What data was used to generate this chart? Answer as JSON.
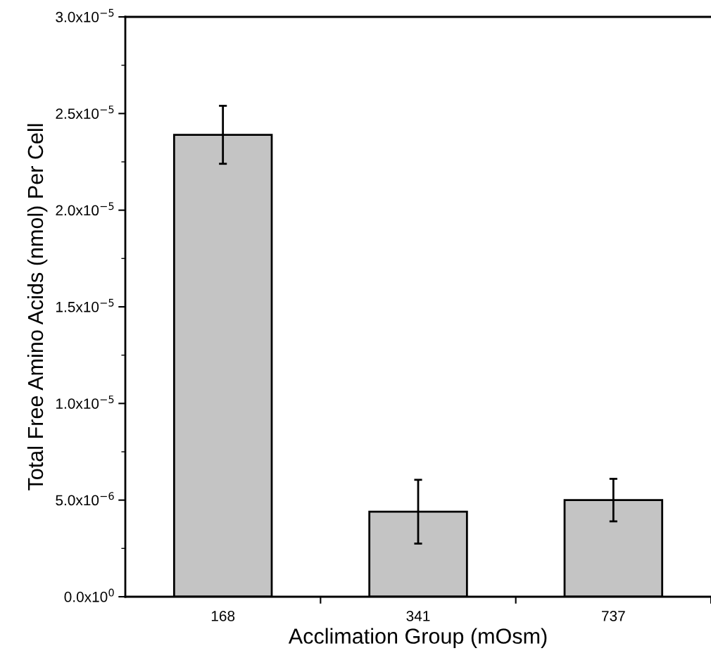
{
  "chart_data": {
    "type": "bar",
    "xlabel": "Acclimation Group (mOsm)",
    "ylabel": "Total Free Amino Acids (nmol) Per Cell",
    "categories": [
      "168",
      "341",
      "737"
    ],
    "values": [
      2.39e-05,
      4.4e-06,
      5e-06
    ],
    "errors": [
      1.5e-06,
      1.65e-06,
      1.1e-06
    ],
    "color": "#c4c4c4",
    "ylim": [
      0,
      3e-05
    ],
    "yticks": [
      {
        "value": 0,
        "label": "0.0x10$^{0}$"
      },
      {
        "value": 5e-06,
        "label": "5.0x10$^{−6}$"
      },
      {
        "value": 1e-05,
        "label": "1.0x10$^{−5}$"
      },
      {
        "value": 1.5e-05,
        "label": "1.5x10$^{−5}$"
      },
      {
        "value": 2e-05,
        "label": "2.0x10$^{−5}$"
      },
      {
        "value": 2.5e-05,
        "label": "2.5x10$^{−5}$"
      },
      {
        "value": 3e-05,
        "label": "3.0x10$^{−5}$"
      }
    ],
    "grid": false,
    "legend": false
  }
}
